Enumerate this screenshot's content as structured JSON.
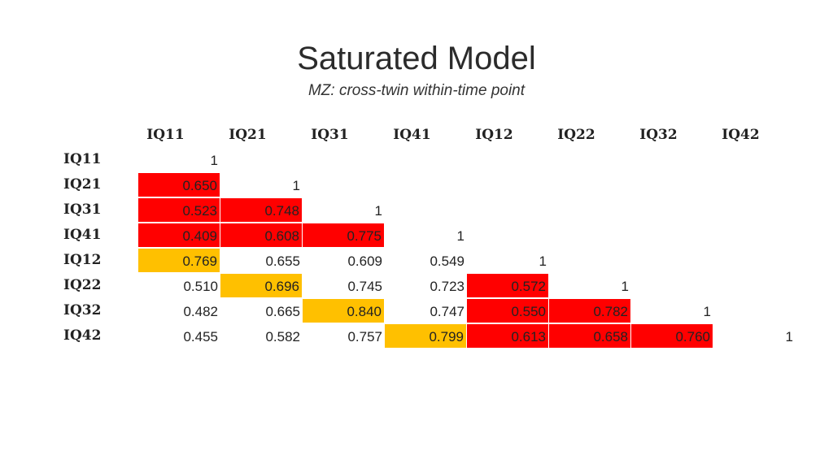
{
  "title": "Saturated Model",
  "subtitle": "MZ: cross-twin within-time point",
  "columns": [
    "IQ11",
    "IQ21",
    "IQ31",
    "IQ41",
    "IQ12",
    "IQ22",
    "IQ32",
    "IQ42"
  ],
  "rows": [
    "IQ11",
    "IQ21",
    "IQ31",
    "IQ41",
    "IQ12",
    "IQ22",
    "IQ32",
    "IQ42"
  ],
  "colors": {
    "within_twin": "#ff0000",
    "cross_twin_same_time": "#ffc000"
  },
  "matrix": [
    [
      {
        "v": "1",
        "c": ""
      }
    ],
    [
      {
        "v": "0.650",
        "c": "red"
      },
      {
        "v": "1",
        "c": ""
      }
    ],
    [
      {
        "v": "0.523",
        "c": "red"
      },
      {
        "v": "0.748",
        "c": "red"
      },
      {
        "v": "1",
        "c": ""
      }
    ],
    [
      {
        "v": "0.409",
        "c": "red"
      },
      {
        "v": "0.608",
        "c": "red"
      },
      {
        "v": "0.775",
        "c": "red"
      },
      {
        "v": "1",
        "c": ""
      }
    ],
    [
      {
        "v": "0.769",
        "c": "gold"
      },
      {
        "v": "0.655",
        "c": ""
      },
      {
        "v": "0.609",
        "c": ""
      },
      {
        "v": "0.549",
        "c": ""
      },
      {
        "v": "1",
        "c": ""
      }
    ],
    [
      {
        "v": "0.510",
        "c": ""
      },
      {
        "v": "0.696",
        "c": "gold"
      },
      {
        "v": "0.745",
        "c": ""
      },
      {
        "v": "0.723",
        "c": ""
      },
      {
        "v": "0.572",
        "c": "red"
      },
      {
        "v": "1",
        "c": ""
      }
    ],
    [
      {
        "v": "0.482",
        "c": ""
      },
      {
        "v": "0.665",
        "c": ""
      },
      {
        "v": "0.840",
        "c": "gold"
      },
      {
        "v": "0.747",
        "c": ""
      },
      {
        "v": "0.550",
        "c": "red"
      },
      {
        "v": "0.782",
        "c": "red"
      },
      {
        "v": "1",
        "c": ""
      }
    ],
    [
      {
        "v": "0.455",
        "c": ""
      },
      {
        "v": "0.582",
        "c": ""
      },
      {
        "v": "0.757",
        "c": ""
      },
      {
        "v": "0.799",
        "c": "gold"
      },
      {
        "v": "0.613",
        "c": "red"
      },
      {
        "v": "0.658",
        "c": "red"
      },
      {
        "v": "0.760",
        "c": "red"
      },
      {
        "v": "1",
        "c": ""
      }
    ]
  ]
}
